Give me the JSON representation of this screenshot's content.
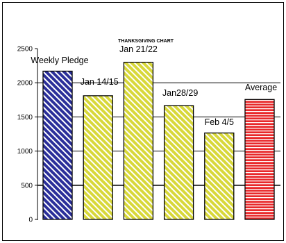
{
  "chart_data": {
    "type": "bar",
    "title": "THANKSGIVING CHART",
    "categories": [
      "Weekly Pledge",
      "Jan 14/15",
      "Jan 21/22",
      "Jan28/29",
      "Feb 4/5",
      "Average"
    ],
    "values": [
      2170,
      1810,
      2300,
      1665,
      1265,
      1755
    ],
    "ylim": [
      0,
      2500
    ],
    "yticks": [
      "0",
      "500",
      "1000",
      "1500",
      "2000",
      "2500"
    ],
    "grid": true,
    "legend": "none",
    "bar_styles": [
      {
        "fill": "#2b2f9a",
        "stripe": "#ffffff",
        "pattern": "diagonal"
      },
      {
        "fill": "#d8d83a",
        "stripe": "#ffffff",
        "pattern": "diagonal"
      },
      {
        "fill": "#d8d83a",
        "stripe": "#ffffff",
        "pattern": "diagonal"
      },
      {
        "fill": "#d8d83a",
        "stripe": "#ffffff",
        "pattern": "diagonal"
      },
      {
        "fill": "#d8d83a",
        "stripe": "#ffffff",
        "pattern": "diagonal"
      },
      {
        "fill": "#e8282a",
        "stripe": "#ffffff",
        "pattern": "horizontal"
      }
    ]
  }
}
